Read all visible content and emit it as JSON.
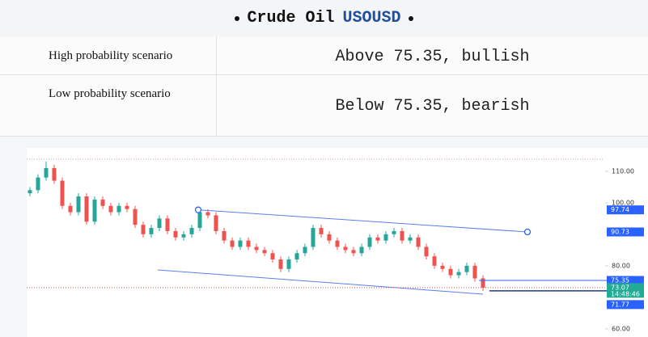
{
  "header": {
    "title": "Crude Oil",
    "symbol": "USOUSD"
  },
  "table": {
    "rows": [
      [
        "High probability scenario",
        "Above 75.35, bullish"
      ],
      [
        "Low probability scenario",
        "Below 75.35, bearish"
      ]
    ]
  },
  "chart_data": {
    "type": "candlestick",
    "open": [
      103,
      104,
      108,
      111,
      107,
      99,
      97,
      102,
      94,
      101,
      99,
      97,
      99,
      98,
      93,
      90,
      92,
      95,
      91,
      89,
      90,
      92,
      97,
      96,
      91,
      88,
      86,
      88,
      86,
      85,
      84,
      82,
      79,
      82,
      84,
      86,
      92,
      90,
      88,
      86,
      85,
      84,
      86,
      89,
      88,
      90,
      91,
      88,
      89,
      86,
      83,
      80,
      79,
      77,
      78,
      80,
      76
    ],
    "high": [
      105,
      109,
      113,
      112,
      108,
      100,
      103,
      103,
      102,
      102,
      100,
      100,
      100,
      99,
      94,
      93,
      96,
      96,
      92,
      91,
      93,
      98,
      98,
      97,
      92,
      89,
      89,
      89,
      87,
      86,
      85,
      83,
      83,
      85,
      87,
      93,
      93,
      91,
      89,
      87,
      86,
      87,
      90,
      90,
      91,
      92,
      92,
      90,
      90,
      87,
      84,
      81,
      80,
      79,
      81,
      81,
      77
    ],
    "low": [
      102,
      103,
      107,
      106,
      98,
      96,
      96,
      93,
      93,
      98,
      96,
      96,
      97,
      92,
      89,
      89,
      91,
      90,
      88,
      88,
      89,
      91,
      95,
      90,
      87,
      85,
      85,
      85,
      84,
      83,
      81,
      78,
      78,
      81,
      83,
      85,
      89,
      87,
      85,
      84,
      83,
      83,
      85,
      87,
      87,
      89,
      87,
      87,
      85,
      82,
      79,
      78,
      76,
      76,
      77,
      75,
      72
    ],
    "close": [
      104,
      108,
      111,
      107,
      99,
      97,
      102,
      94,
      101,
      99,
      97,
      99,
      98,
      93,
      90,
      92,
      95,
      91,
      89,
      90,
      92,
      97,
      96,
      91,
      88,
      86,
      88,
      86,
      85,
      84,
      82,
      79,
      82,
      84,
      86,
      92,
      90,
      88,
      86,
      85,
      84,
      86,
      89,
      88,
      90,
      91,
      88,
      89,
      86,
      83,
      80,
      79,
      77,
      78,
      80,
      76,
      73.07
    ],
    "up_color": "#26a69a",
    "down_color": "#ef5350",
    "ylim": [
      57.4,
      117.4
    ],
    "yticks": [
      {
        "value": 110,
        "label": "110.00"
      },
      {
        "value": 100,
        "label": "100.00"
      },
      {
        "value": 80,
        "label": "80.00"
      },
      {
        "value": 60,
        "label": "60.00"
      }
    ],
    "price_labels": [
      {
        "value": 97.74,
        "color": "#2962ff"
      },
      {
        "value": 90.73,
        "color": "#2962ff"
      },
      {
        "value": 75.35,
        "color": "#2962ff"
      },
      {
        "value": 73.07,
        "color": "#22ab94"
      },
      {
        "value": 71.77,
        "color": "#2962ff"
      }
    ],
    "countdown": "14:48:46"
  }
}
